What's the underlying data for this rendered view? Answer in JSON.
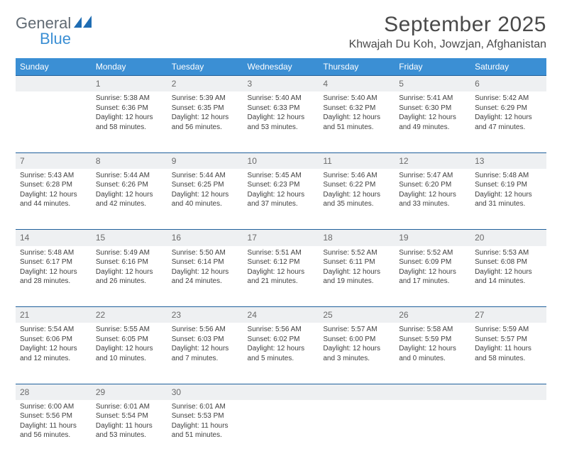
{
  "logo": {
    "line1": "General",
    "line2": "Blue"
  },
  "header": {
    "month_title": "September 2025",
    "location": "Khwajah Du Koh, Jowzjan, Afghanistan"
  },
  "colors": {
    "header_bg": "#3b8fd4",
    "header_text": "#ffffff",
    "daynum_bg": "#eef0f2",
    "border": "#1f5f9b"
  },
  "weekdays": [
    "Sunday",
    "Monday",
    "Tuesday",
    "Wednesday",
    "Thursday",
    "Friday",
    "Saturday"
  ],
  "weeks": [
    [
      null,
      {
        "n": "1",
        "sr": "Sunrise: 5:38 AM",
        "ss": "Sunset: 6:36 PM",
        "d1": "Daylight: 12 hours",
        "d2": "and 58 minutes."
      },
      {
        "n": "2",
        "sr": "Sunrise: 5:39 AM",
        "ss": "Sunset: 6:35 PM",
        "d1": "Daylight: 12 hours",
        "d2": "and 56 minutes."
      },
      {
        "n": "3",
        "sr": "Sunrise: 5:40 AM",
        "ss": "Sunset: 6:33 PM",
        "d1": "Daylight: 12 hours",
        "d2": "and 53 minutes."
      },
      {
        "n": "4",
        "sr": "Sunrise: 5:40 AM",
        "ss": "Sunset: 6:32 PM",
        "d1": "Daylight: 12 hours",
        "d2": "and 51 minutes."
      },
      {
        "n": "5",
        "sr": "Sunrise: 5:41 AM",
        "ss": "Sunset: 6:30 PM",
        "d1": "Daylight: 12 hours",
        "d2": "and 49 minutes."
      },
      {
        "n": "6",
        "sr": "Sunrise: 5:42 AM",
        "ss": "Sunset: 6:29 PM",
        "d1": "Daylight: 12 hours",
        "d2": "and 47 minutes."
      }
    ],
    [
      {
        "n": "7",
        "sr": "Sunrise: 5:43 AM",
        "ss": "Sunset: 6:28 PM",
        "d1": "Daylight: 12 hours",
        "d2": "and 44 minutes."
      },
      {
        "n": "8",
        "sr": "Sunrise: 5:44 AM",
        "ss": "Sunset: 6:26 PM",
        "d1": "Daylight: 12 hours",
        "d2": "and 42 minutes."
      },
      {
        "n": "9",
        "sr": "Sunrise: 5:44 AM",
        "ss": "Sunset: 6:25 PM",
        "d1": "Daylight: 12 hours",
        "d2": "and 40 minutes."
      },
      {
        "n": "10",
        "sr": "Sunrise: 5:45 AM",
        "ss": "Sunset: 6:23 PM",
        "d1": "Daylight: 12 hours",
        "d2": "and 37 minutes."
      },
      {
        "n": "11",
        "sr": "Sunrise: 5:46 AM",
        "ss": "Sunset: 6:22 PM",
        "d1": "Daylight: 12 hours",
        "d2": "and 35 minutes."
      },
      {
        "n": "12",
        "sr": "Sunrise: 5:47 AM",
        "ss": "Sunset: 6:20 PM",
        "d1": "Daylight: 12 hours",
        "d2": "and 33 minutes."
      },
      {
        "n": "13",
        "sr": "Sunrise: 5:48 AM",
        "ss": "Sunset: 6:19 PM",
        "d1": "Daylight: 12 hours",
        "d2": "and 31 minutes."
      }
    ],
    [
      {
        "n": "14",
        "sr": "Sunrise: 5:48 AM",
        "ss": "Sunset: 6:17 PM",
        "d1": "Daylight: 12 hours",
        "d2": "and 28 minutes."
      },
      {
        "n": "15",
        "sr": "Sunrise: 5:49 AM",
        "ss": "Sunset: 6:16 PM",
        "d1": "Daylight: 12 hours",
        "d2": "and 26 minutes."
      },
      {
        "n": "16",
        "sr": "Sunrise: 5:50 AM",
        "ss": "Sunset: 6:14 PM",
        "d1": "Daylight: 12 hours",
        "d2": "and 24 minutes."
      },
      {
        "n": "17",
        "sr": "Sunrise: 5:51 AM",
        "ss": "Sunset: 6:12 PM",
        "d1": "Daylight: 12 hours",
        "d2": "and 21 minutes."
      },
      {
        "n": "18",
        "sr": "Sunrise: 5:52 AM",
        "ss": "Sunset: 6:11 PM",
        "d1": "Daylight: 12 hours",
        "d2": "and 19 minutes."
      },
      {
        "n": "19",
        "sr": "Sunrise: 5:52 AM",
        "ss": "Sunset: 6:09 PM",
        "d1": "Daylight: 12 hours",
        "d2": "and 17 minutes."
      },
      {
        "n": "20",
        "sr": "Sunrise: 5:53 AM",
        "ss": "Sunset: 6:08 PM",
        "d1": "Daylight: 12 hours",
        "d2": "and 14 minutes."
      }
    ],
    [
      {
        "n": "21",
        "sr": "Sunrise: 5:54 AM",
        "ss": "Sunset: 6:06 PM",
        "d1": "Daylight: 12 hours",
        "d2": "and 12 minutes."
      },
      {
        "n": "22",
        "sr": "Sunrise: 5:55 AM",
        "ss": "Sunset: 6:05 PM",
        "d1": "Daylight: 12 hours",
        "d2": "and 10 minutes."
      },
      {
        "n": "23",
        "sr": "Sunrise: 5:56 AM",
        "ss": "Sunset: 6:03 PM",
        "d1": "Daylight: 12 hours",
        "d2": "and 7 minutes."
      },
      {
        "n": "24",
        "sr": "Sunrise: 5:56 AM",
        "ss": "Sunset: 6:02 PM",
        "d1": "Daylight: 12 hours",
        "d2": "and 5 minutes."
      },
      {
        "n": "25",
        "sr": "Sunrise: 5:57 AM",
        "ss": "Sunset: 6:00 PM",
        "d1": "Daylight: 12 hours",
        "d2": "and 3 minutes."
      },
      {
        "n": "26",
        "sr": "Sunrise: 5:58 AM",
        "ss": "Sunset: 5:59 PM",
        "d1": "Daylight: 12 hours",
        "d2": "and 0 minutes."
      },
      {
        "n": "27",
        "sr": "Sunrise: 5:59 AM",
        "ss": "Sunset: 5:57 PM",
        "d1": "Daylight: 11 hours",
        "d2": "and 58 minutes."
      }
    ],
    [
      {
        "n": "28",
        "sr": "Sunrise: 6:00 AM",
        "ss": "Sunset: 5:56 PM",
        "d1": "Daylight: 11 hours",
        "d2": "and 56 minutes."
      },
      {
        "n": "29",
        "sr": "Sunrise: 6:01 AM",
        "ss": "Sunset: 5:54 PM",
        "d1": "Daylight: 11 hours",
        "d2": "and 53 minutes."
      },
      {
        "n": "30",
        "sr": "Sunrise: 6:01 AM",
        "ss": "Sunset: 5:53 PM",
        "d1": "Daylight: 11 hours",
        "d2": "and 51 minutes."
      },
      null,
      null,
      null,
      null
    ]
  ]
}
